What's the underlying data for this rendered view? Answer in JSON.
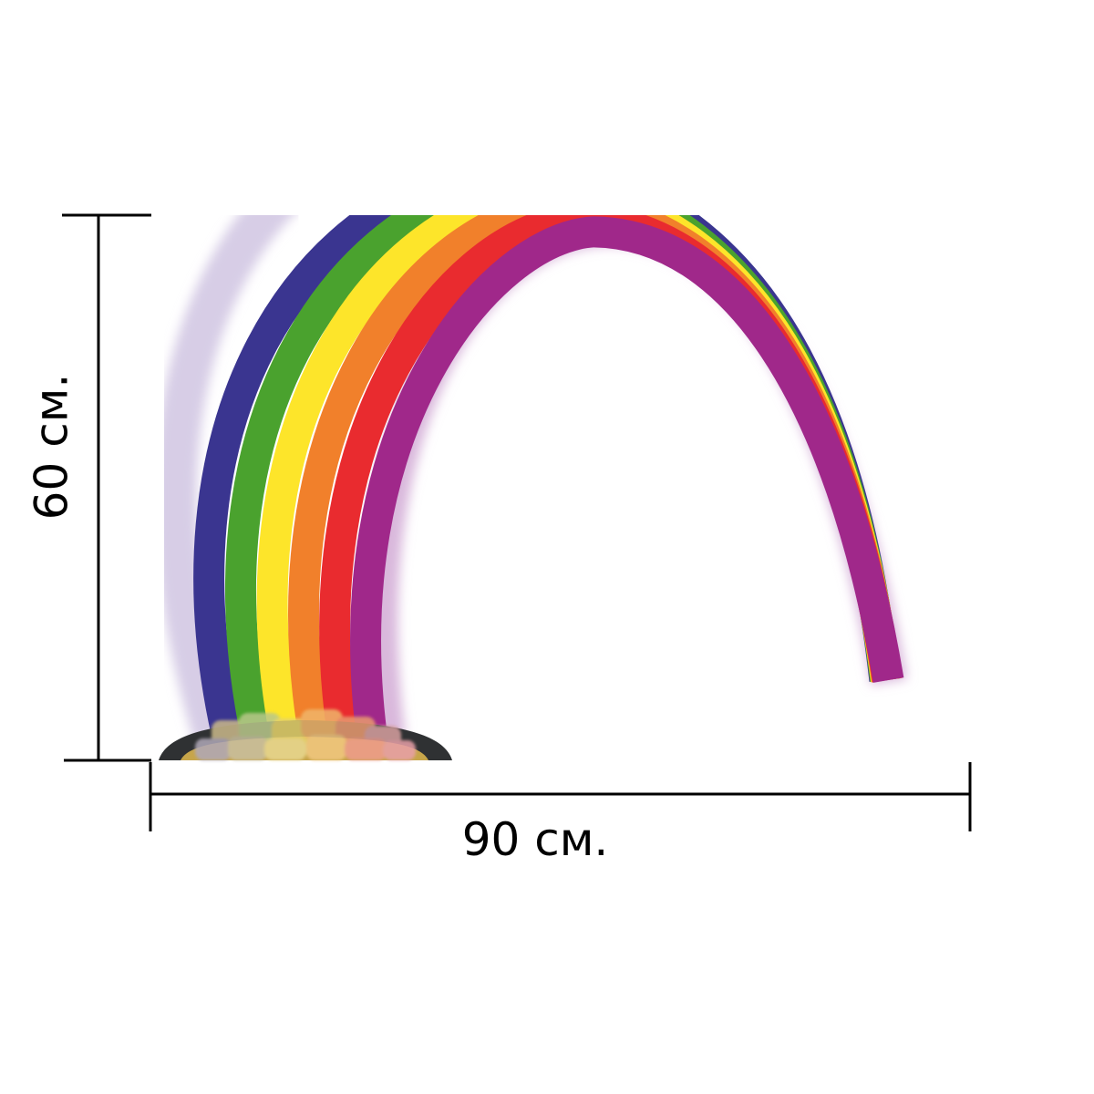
{
  "dimensions": {
    "height_label": "60 см.",
    "width_label": "90 см."
  },
  "illustration": {
    "subject": "rainbow-with-pot-of-gold",
    "band_colors": [
      "#3a3590",
      "#4aa22e",
      "#fde52a",
      "#f1802b",
      "#e92b2f",
      "#a0288a"
    ],
    "pot_color": "#2b2b2b"
  }
}
